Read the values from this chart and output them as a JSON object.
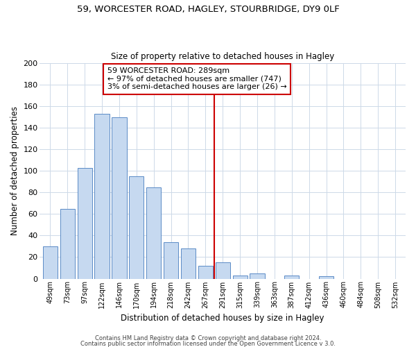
{
  "title1": "59, WORCESTER ROAD, HAGLEY, STOURBRIDGE, DY9 0LF",
  "title2": "Size of property relative to detached houses in Hagley",
  "xlabel": "Distribution of detached houses by size in Hagley",
  "ylabel": "Number of detached properties",
  "bar_labels": [
    "49sqm",
    "73sqm",
    "97sqm",
    "122sqm",
    "146sqm",
    "170sqm",
    "194sqm",
    "218sqm",
    "242sqm",
    "267sqm",
    "291sqm",
    "315sqm",
    "339sqm",
    "363sqm",
    "387sqm",
    "412sqm",
    "436sqm",
    "460sqm",
    "484sqm",
    "508sqm",
    "532sqm"
  ],
  "bar_values": [
    30,
    65,
    103,
    153,
    150,
    95,
    85,
    34,
    28,
    12,
    15,
    3,
    5,
    0,
    3,
    0,
    2,
    0,
    0,
    0,
    0
  ],
  "bar_color": "#c6d9f0",
  "bar_edge_color": "#5a8ac6",
  "highlight_line_color": "#cc0000",
  "annotation_title": "59 WORCESTER ROAD: 289sqm",
  "annotation_line1": "← 97% of detached houses are smaller (747)",
  "annotation_line2": "3% of semi-detached houses are larger (26) →",
  "annotation_box_edge": "#cc0000",
  "ylim": [
    0,
    200
  ],
  "yticks": [
    0,
    20,
    40,
    60,
    80,
    100,
    120,
    140,
    160,
    180,
    200
  ],
  "footer1": "Contains HM Land Registry data © Crown copyright and database right 2024.",
  "footer2": "Contains public sector information licensed under the Open Government Licence v 3.0.",
  "vline_x_index": 10
}
